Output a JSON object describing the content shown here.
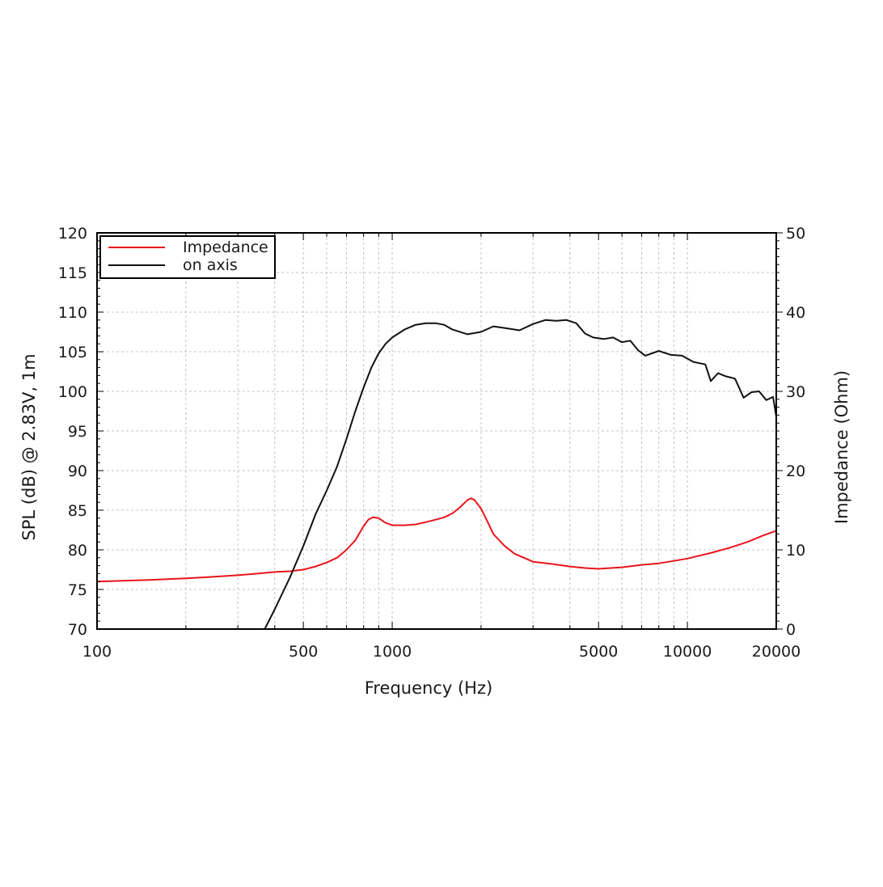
{
  "chart_data": {
    "type": "line",
    "xlabel": "Frequency (Hz)",
    "ylabel_left": "SPL (dB) @ 2.83V, 1m",
    "ylabel_right": "Impedance (Ohm)",
    "x_scale": "log",
    "xlim": [
      100,
      20000
    ],
    "ylim_left": [
      70,
      120
    ],
    "ylim_right": [
      0,
      50
    ],
    "x_ticks": [
      100,
      500,
      1000,
      5000,
      10000,
      20000
    ],
    "x_tick_labels": [
      "100",
      "500",
      "1000",
      "5000",
      "10000",
      "20000"
    ],
    "y_left_ticks": [
      70,
      75,
      80,
      85,
      90,
      95,
      100,
      105,
      110,
      115,
      120
    ],
    "y_left_tick_labels": [
      "70",
      "75",
      "80",
      "85",
      "90",
      "95",
      "100",
      "105",
      "110",
      "115",
      "120"
    ],
    "y_right_ticks": [
      0,
      10,
      20,
      30,
      40,
      50
    ],
    "y_right_tick_labels": [
      "0",
      "10",
      "20",
      "30",
      "40",
      "50"
    ],
    "grid": true,
    "legend_position": "top-left",
    "series": [
      {
        "name": "Impedance",
        "axis": "right",
        "color": "#e8141b",
        "x": [
          100,
          150,
          200,
          250,
          300,
          350,
          400,
          450,
          500,
          550,
          600,
          650,
          700,
          750,
          800,
          830,
          860,
          900,
          950,
          1000,
          1100,
          1200,
          1300,
          1400,
          1500,
          1600,
          1700,
          1800,
          1850,
          1900,
          2000,
          2100,
          2200,
          2400,
          2600,
          3000,
          3500,
          4000,
          4500,
          5000,
          5500,
          6000,
          7000,
          8000,
          9000,
          10000,
          12000,
          14000,
          16000,
          18000,
          20000
        ],
        "values": [
          6.0,
          6.2,
          6.4,
          6.6,
          6.8,
          7.0,
          7.2,
          7.3,
          7.5,
          7.9,
          8.4,
          9.0,
          10.0,
          11.2,
          13.0,
          13.8,
          14.1,
          14.0,
          13.4,
          13.1,
          13.1,
          13.2,
          13.5,
          13.8,
          14.1,
          14.6,
          15.4,
          16.3,
          16.5,
          16.3,
          15.2,
          13.6,
          12.0,
          10.5,
          9.5,
          8.5,
          8.2,
          7.9,
          7.7,
          7.6,
          7.7,
          7.8,
          8.1,
          8.3,
          8.6,
          8.9,
          9.6,
          10.3,
          11.0,
          11.8,
          12.4
        ]
      },
      {
        "name": "on axis",
        "axis": "left",
        "color": "#111111",
        "x": [
          370,
          400,
          450,
          500,
          550,
          600,
          650,
          700,
          750,
          800,
          850,
          900,
          950,
          1000,
          1100,
          1200,
          1300,
          1400,
          1500,
          1600,
          1800,
          2000,
          2200,
          2400,
          2700,
          3000,
          3300,
          3600,
          3900,
          4200,
          4500,
          4800,
          5200,
          5600,
          6000,
          6400,
          6800,
          7200,
          8000,
          8800,
          9600,
          10500,
          11500,
          12000,
          12700,
          13500,
          14500,
          15500,
          16500,
          17500,
          18500,
          19500,
          20000
        ],
        "values": [
          70.0,
          72.5,
          76.5,
          80.5,
          84.5,
          87.5,
          90.5,
          94.0,
          97.5,
          100.5,
          103.0,
          104.8,
          106.0,
          106.8,
          107.8,
          108.4,
          108.6,
          108.6,
          108.4,
          107.8,
          107.2,
          107.5,
          108.2,
          108.0,
          107.7,
          108.5,
          109.0,
          108.9,
          109.0,
          108.6,
          107.3,
          106.8,
          106.6,
          106.8,
          106.2,
          106.4,
          105.2,
          104.5,
          105.1,
          104.6,
          104.5,
          103.7,
          103.4,
          101.3,
          102.3,
          101.9,
          101.6,
          99.2,
          99.9,
          100.0,
          98.9,
          99.3,
          96.8
        ]
      }
    ]
  }
}
